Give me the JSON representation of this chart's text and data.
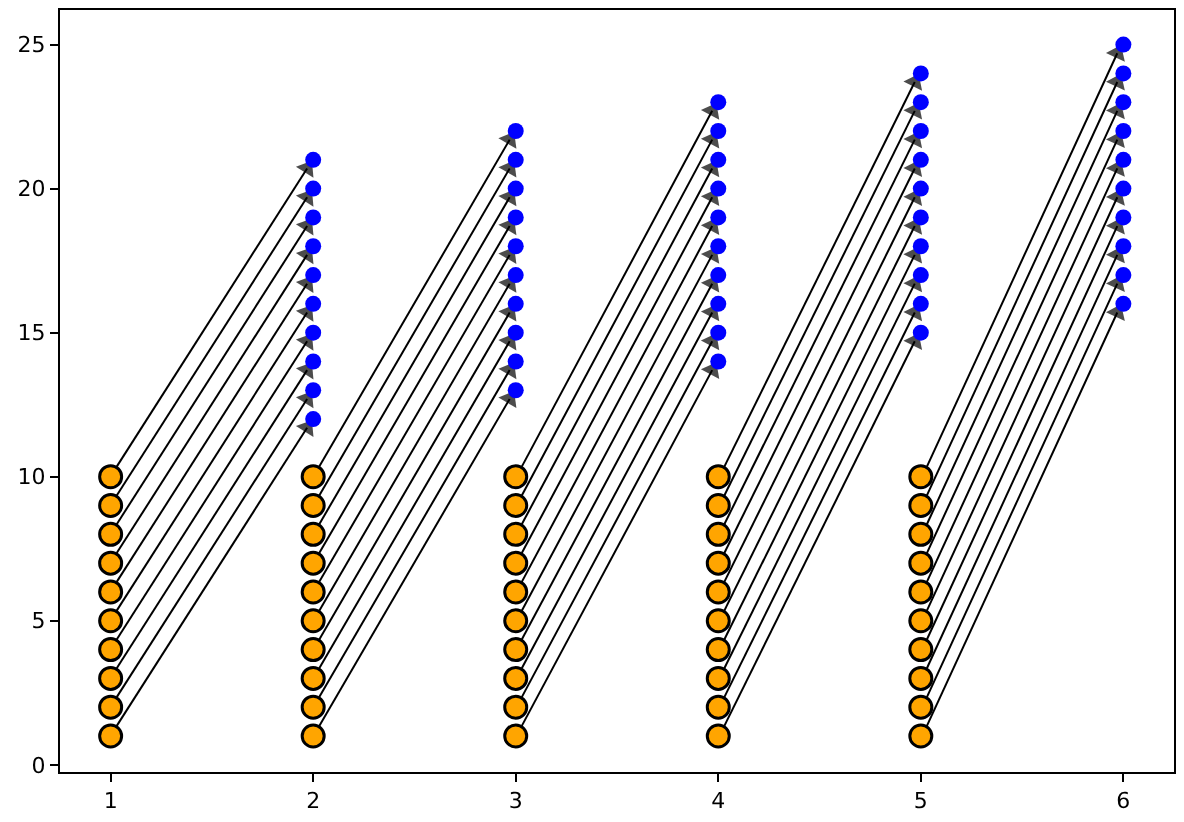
{
  "chart_data": {
    "type": "scatter",
    "xlim": [
      0.75,
      6.25
    ],
    "xticks": [
      1,
      2,
      3,
      4,
      5,
      6
    ],
    "ylim": [
      -0.25,
      26.2
    ],
    "yticks": [
      0,
      5,
      10,
      15,
      20,
      25
    ],
    "marker": "circle",
    "series": [
      {
        "type": "line",
        "marker": "triangle",
        "color": "#000000",
        "x": [
          1.03,
          1.97
        ],
        "values": [
          1.35,
          11.7
        ]
      },
      {
        "type": "line",
        "marker": "triangle",
        "color": "#000000",
        "x": [
          1.03,
          1.97
        ],
        "values": [
          2.35,
          12.7
        ]
      },
      {
        "type": "line",
        "marker": "triangle",
        "color": "#000000",
        "x": [
          1.03,
          1.97
        ],
        "values": [
          3.35,
          13.7
        ]
      },
      {
        "type": "line",
        "marker": "triangle",
        "color": "#000000",
        "x": [
          1.03,
          1.97
        ],
        "values": [
          4.35,
          14.7
        ]
      },
      {
        "type": "line",
        "marker": "triangle",
        "color": "#000000",
        "x": [
          1.03,
          1.97
        ],
        "values": [
          5.35,
          15.7
        ]
      },
      {
        "type": "line",
        "marker": "triangle",
        "color": "#000000",
        "x": [
          1.03,
          1.97
        ],
        "values": [
          6.35,
          16.7
        ]
      },
      {
        "type": "line",
        "marker": "triangle",
        "color": "#000000",
        "x": [
          1.03,
          1.97
        ],
        "values": [
          7.35,
          17.7
        ]
      },
      {
        "type": "line",
        "marker": "triangle",
        "color": "#000000",
        "x": [
          1.03,
          1.97
        ],
        "values": [
          8.35,
          18.7
        ]
      },
      {
        "type": "line",
        "marker": "triangle",
        "color": "#000000",
        "x": [
          1.03,
          1.97
        ],
        "values": [
          9.35,
          19.7
        ]
      },
      {
        "type": "line",
        "marker": "triangle",
        "color": "#000000",
        "x": [
          1.03,
          1.97
        ],
        "values": [
          10.35,
          20.7
        ]
      },
      {
        "type": "line",
        "marker": "triangle",
        "color": "#000000",
        "x": [
          2.03,
          2.97
        ],
        "values": [
          1.35,
          12.7
        ]
      },
      {
        "type": "line",
        "marker": "triangle",
        "color": "#000000",
        "x": [
          2.03,
          2.97
        ],
        "values": [
          2.35,
          13.7
        ]
      },
      {
        "type": "line",
        "marker": "triangle",
        "color": "#000000",
        "x": [
          2.03,
          2.97
        ],
        "values": [
          3.35,
          14.7
        ]
      },
      {
        "type": "line",
        "marker": "triangle",
        "color": "#000000",
        "x": [
          2.03,
          2.97
        ],
        "values": [
          4.35,
          15.7
        ]
      },
      {
        "type": "line",
        "marker": "triangle",
        "color": "#000000",
        "x": [
          2.03,
          2.97
        ],
        "values": [
          5.35,
          16.7
        ]
      },
      {
        "type": "line",
        "marker": "triangle",
        "color": "#000000",
        "x": [
          2.03,
          2.97
        ],
        "values": [
          6.35,
          17.7
        ]
      },
      {
        "type": "line",
        "marker": "triangle",
        "color": "#000000",
        "x": [
          2.03,
          2.97
        ],
        "values": [
          7.35,
          18.7
        ]
      },
      {
        "type": "line",
        "marker": "triangle",
        "color": "#000000",
        "x": [
          2.03,
          2.97
        ],
        "values": [
          8.35,
          19.7
        ]
      },
      {
        "type": "line",
        "marker": "triangle",
        "color": "#000000",
        "x": [
          2.03,
          2.97
        ],
        "values": [
          9.35,
          20.7
        ]
      },
      {
        "type": "line",
        "marker": "triangle",
        "color": "#000000",
        "x": [
          2.03,
          2.97
        ],
        "values": [
          10.35,
          21.7
        ]
      },
      {
        "type": "line",
        "marker": "triangle",
        "color": "#000000",
        "x": [
          3.03,
          3.97
        ],
        "values": [
          1.35,
          13.7
        ]
      },
      {
        "type": "line",
        "marker": "triangle",
        "color": "#000000",
        "x": [
          3.03,
          3.97
        ],
        "values": [
          2.35,
          14.7
        ]
      },
      {
        "type": "line",
        "marker": "triangle",
        "color": "#000000",
        "x": [
          3.03,
          3.97
        ],
        "values": [
          3.35,
          15.7
        ]
      },
      {
        "type": "line",
        "marker": "triangle",
        "color": "#000000",
        "x": [
          3.03,
          3.97
        ],
        "values": [
          4.35,
          16.7
        ]
      },
      {
        "type": "line",
        "marker": "triangle",
        "color": "#000000",
        "x": [
          3.03,
          3.97
        ],
        "values": [
          5.35,
          17.7
        ]
      },
      {
        "type": "line",
        "marker": "triangle",
        "color": "#000000",
        "x": [
          3.03,
          3.97
        ],
        "values": [
          6.35,
          18.7
        ]
      },
      {
        "type": "line",
        "marker": "triangle",
        "color": "#000000",
        "x": [
          3.03,
          3.97
        ],
        "values": [
          7.35,
          19.7
        ]
      },
      {
        "type": "line",
        "marker": "triangle",
        "color": "#000000",
        "x": [
          3.03,
          3.97
        ],
        "values": [
          8.35,
          20.7
        ]
      },
      {
        "type": "line",
        "marker": "triangle",
        "color": "#000000",
        "x": [
          3.03,
          3.97
        ],
        "values": [
          9.35,
          21.7
        ]
      },
      {
        "type": "line",
        "marker": "triangle",
        "color": "#000000",
        "x": [
          3.03,
          3.97
        ],
        "values": [
          10.35,
          22.7
        ]
      },
      {
        "type": "line",
        "marker": "triangle",
        "color": "#000000",
        "x": [
          4.03,
          4.97
        ],
        "values": [
          1.35,
          14.7
        ]
      },
      {
        "type": "line",
        "marker": "triangle",
        "color": "#000000",
        "x": [
          4.03,
          4.97
        ],
        "values": [
          2.35,
          15.7
        ]
      },
      {
        "type": "line",
        "marker": "triangle",
        "color": "#000000",
        "x": [
          4.03,
          4.97
        ],
        "values": [
          3.35,
          16.7
        ]
      },
      {
        "type": "line",
        "marker": "triangle",
        "color": "#000000",
        "x": [
          4.03,
          4.97
        ],
        "values": [
          4.35,
          17.7
        ]
      },
      {
        "type": "line",
        "marker": "triangle",
        "color": "#000000",
        "x": [
          4.03,
          4.97
        ],
        "values": [
          5.35,
          18.7
        ]
      },
      {
        "type": "line",
        "marker": "triangle",
        "color": "#000000",
        "x": [
          4.03,
          4.97
        ],
        "values": [
          6.35,
          19.7
        ]
      },
      {
        "type": "line",
        "marker": "triangle",
        "color": "#000000",
        "x": [
          4.03,
          4.97
        ],
        "values": [
          7.35,
          20.7
        ]
      },
      {
        "type": "line",
        "marker": "triangle",
        "color": "#000000",
        "x": [
          4.03,
          4.97
        ],
        "values": [
          8.35,
          21.7
        ]
      },
      {
        "type": "line",
        "marker": "triangle",
        "color": "#000000",
        "x": [
          4.03,
          4.97
        ],
        "values": [
          9.35,
          22.7
        ]
      },
      {
        "type": "line",
        "marker": "triangle",
        "color": "#000000",
        "x": [
          4.03,
          4.97
        ],
        "values": [
          10.35,
          23.7
        ]
      },
      {
        "type": "line",
        "marker": "triangle",
        "color": "#000000",
        "x": [
          5.03,
          5.97
        ],
        "values": [
          1.35,
          15.7
        ]
      },
      {
        "type": "line",
        "marker": "triangle",
        "color": "#000000",
        "x": [
          5.03,
          5.97
        ],
        "values": [
          2.35,
          16.7
        ]
      },
      {
        "type": "line",
        "marker": "triangle",
        "color": "#000000",
        "x": [
          5.03,
          5.97
        ],
        "values": [
          3.35,
          17.7
        ]
      },
      {
        "type": "line",
        "marker": "triangle",
        "color": "#000000",
        "x": [
          5.03,
          5.97
        ],
        "values": [
          4.35,
          18.7
        ]
      },
      {
        "type": "line",
        "marker": "triangle",
        "color": "#000000",
        "x": [
          5.03,
          5.97
        ],
        "values": [
          5.35,
          19.7
        ]
      },
      {
        "type": "line",
        "marker": "triangle",
        "color": "#000000",
        "x": [
          5.03,
          5.97
        ],
        "values": [
          6.35,
          20.7
        ]
      },
      {
        "type": "line",
        "marker": "triangle",
        "color": "#000000",
        "x": [
          5.03,
          5.97
        ],
        "values": [
          7.35,
          21.7
        ]
      },
      {
        "type": "line",
        "marker": "triangle",
        "color": "#000000",
        "x": [
          5.03,
          5.97
        ],
        "values": [
          8.35,
          22.7
        ]
      },
      {
        "type": "line",
        "marker": "triangle",
        "color": "#000000",
        "x": [
          5.03,
          5.97
        ],
        "values": [
          9.35,
          23.7
        ]
      },
      {
        "type": "line",
        "marker": "triangle",
        "color": "#000000",
        "x": [
          5.03,
          5.97
        ],
        "values": [
          10.35,
          24.7
        ]
      },
      {
        "color": "#ffa500",
        "x": [
          1,
          1,
          1,
          1,
          1,
          1,
          1,
          1,
          1,
          1,
          2,
          2,
          2,
          2,
          2,
          2,
          2,
          2,
          2,
          2,
          3,
          3,
          3,
          3,
          3,
          3,
          3,
          3,
          3,
          3,
          4,
          4,
          4,
          4,
          4,
          4,
          4,
          4,
          4,
          4,
          5,
          5,
          5,
          5,
          5,
          5,
          5,
          5,
          5,
          5
        ],
        "values": [
          1,
          2,
          3,
          4,
          5,
          6,
          7,
          8,
          9,
          10,
          1,
          2,
          3,
          4,
          5,
          6,
          7,
          8,
          9,
          10,
          1,
          2,
          3,
          4,
          5,
          6,
          7,
          8,
          9,
          10,
          1,
          2,
          3,
          4,
          5,
          6,
          7,
          8,
          9,
          10,
          1,
          2,
          3,
          4,
          5,
          6,
          7,
          8,
          9,
          10
        ]
      },
      {
        "color": "#0000ff",
        "x": [
          2,
          2,
          2,
          2,
          2,
          2,
          2,
          2,
          2,
          2,
          3,
          3,
          3,
          3,
          3,
          3,
          3,
          3,
          3,
          3,
          4,
          4,
          4,
          4,
          4,
          4,
          4,
          4,
          4,
          4,
          5,
          5,
          5,
          5,
          5,
          5,
          5,
          5,
          5,
          5,
          6,
          6,
          6,
          6,
          6,
          6,
          6,
          6,
          6,
          6
        ],
        "values": [
          12,
          13,
          14,
          15,
          16,
          17,
          18,
          19,
          20,
          21,
          13,
          14,
          15,
          16,
          17,
          18,
          19,
          20,
          21,
          22,
          14,
          15,
          16,
          17,
          18,
          19,
          20,
          21,
          22,
          23,
          15,
          16,
          17,
          18,
          19,
          20,
          21,
          22,
          23,
          24,
          16,
          17,
          18,
          19,
          20,
          21,
          22,
          23,
          24,
          25
        ]
      }
    ]
  }
}
